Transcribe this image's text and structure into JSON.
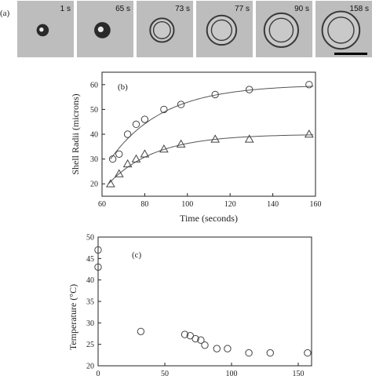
{
  "panel_a": {
    "label": "(a)",
    "frames": [
      {
        "time": "1 s",
        "core": 0.18,
        "rings": []
      },
      {
        "time": "65 s",
        "core": 0.24,
        "rings": []
      },
      {
        "time": "73 s",
        "core": 0.0,
        "rings": [
          0.42,
          0.3
        ]
      },
      {
        "time": "77 s",
        "core": 0.0,
        "rings": [
          0.52,
          0.36
        ]
      },
      {
        "time": "90 s",
        "core": 0.0,
        "rings": [
          0.6,
          0.42
        ]
      },
      {
        "time": "158 s",
        "core": 0.0,
        "rings": [
          0.66,
          0.46
        ]
      }
    ]
  },
  "chart_data": [
    {
      "type": "scatter",
      "panel_label": "(b)",
      "xlabel": "Time (seconds)",
      "ylabel": "Shell Radii (microns)",
      "xlim": [
        60,
        160
      ],
      "ylim": [
        15,
        65
      ],
      "xticks": [
        60,
        80,
        100,
        120,
        140,
        160
      ],
      "yticks": [
        20,
        30,
        40,
        50,
        60
      ],
      "series": [
        {
          "marker": "circle",
          "x": [
            65,
            68,
            72,
            76,
            80,
            89,
            97,
            113,
            129,
            157
          ],
          "y": [
            30,
            32,
            40,
            44,
            46,
            50,
            52,
            56,
            58,
            60
          ]
        },
        {
          "marker": "triangle",
          "x": [
            64,
            68,
            72,
            76,
            80,
            89,
            97,
            113,
            129,
            157
          ],
          "y": [
            20,
            24,
            28,
            30,
            32,
            34,
            36,
            38,
            38,
            40
          ]
        }
      ],
      "fits": [
        {
          "a": 60,
          "b": 30,
          "x0": 64,
          "tau": 25,
          "x": [
            64,
            159
          ]
        },
        {
          "a": 40,
          "b": 20,
          "x0": 63,
          "tau": 22,
          "x": [
            63,
            159
          ]
        }
      ]
    },
    {
      "type": "scatter",
      "panel_label": "(c)",
      "xlabel": "",
      "ylabel": "Temperature (°C)",
      "xlim": [
        0,
        160
      ],
      "ylim": [
        20,
        50
      ],
      "xticks": [
        0,
        50,
        100,
        150
      ],
      "yticks": [
        20,
        25,
        30,
        35,
        40,
        45,
        50
      ],
      "series": [
        {
          "marker": "circle",
          "x": [
            0,
            0,
            32,
            65,
            69,
            73,
            77,
            80,
            89,
            97,
            113,
            129,
            157
          ],
          "y": [
            47,
            43,
            28,
            27.3,
            27,
            26.3,
            26,
            24.8,
            24,
            24,
            23,
            23,
            23
          ]
        }
      ]
    }
  ]
}
